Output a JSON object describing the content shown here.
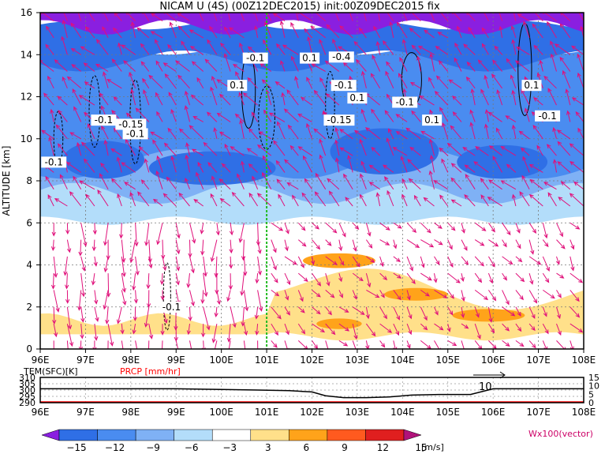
{
  "title": "NICAM U (4S) (00Z12DEC2015) init:00Z09DEC2015 fix",
  "colors": {
    "levels": [
      "#8a1fe0",
      "#2f6fe6",
      "#4a8cf0",
      "#7fb1f5",
      "#b3ddfa",
      "#ffffff",
      "#ffe08a",
      "#ffa31a",
      "#ff5a1f",
      "#e01f1f",
      "#b0127a"
    ],
    "vector": "#e0107a",
    "contour": "#000000",
    "marker_line": "#22bb22",
    "prcp_label": "#ff0000",
    "legend_label": "#cc0066"
  },
  "chart_data": [
    {
      "type": "heatmap",
      "title": "NICAM U (4S) (00Z12DEC2015) init:00Z09DEC2015 fix",
      "ylabel": "ALTITUDE [km]",
      "xlabel": "",
      "x_ticks": [
        "96E",
        "97E",
        "98E",
        "99E",
        "100E",
        "101E",
        "102E",
        "103E",
        "104E",
        "105E",
        "106E",
        "107E",
        "108E"
      ],
      "y_ticks": [
        "0",
        "2",
        "4",
        "6",
        "8",
        "10",
        "12",
        "14",
        "16"
      ],
      "xlim": [
        96,
        108
      ],
      "ylim": [
        0,
        16
      ],
      "grid": true,
      "marker_longitude": 101,
      "shading": "zonal wind U [m/s]",
      "levels": [
        -15,
        -12,
        -9,
        -6,
        -3,
        3,
        6,
        9,
        12,
        15
      ],
      "vectors": "zonal/vertical wind, Wx100",
      "contour_labels": [
        {
          "text": "-0.1",
          "x": 100.75,
          "y": 13.8
        },
        {
          "text": "0.1",
          "x": 101.95,
          "y": 13.8
        },
        {
          "text": "-0.4",
          "x": 102.65,
          "y": 13.85
        },
        {
          "text": "0.1",
          "x": 100.35,
          "y": 12.5
        },
        {
          "text": "-0.1",
          "x": 102.7,
          "y": 12.5
        },
        {
          "text": "0.1",
          "x": 103.0,
          "y": 11.9
        },
        {
          "text": "-0.1",
          "x": 104.05,
          "y": 11.7
        },
        {
          "text": "0.1",
          "x": 104.65,
          "y": 10.85
        },
        {
          "text": "0.1",
          "x": 106.85,
          "y": 12.5
        },
        {
          "text": "-0.1",
          "x": 107.2,
          "y": 11.05
        },
        {
          "text": "-0.1",
          "x": 97.4,
          "y": 10.85
        },
        {
          "text": "-0.15",
          "x": 98.0,
          "y": 10.65
        },
        {
          "text": "-0.1",
          "x": 98.1,
          "y": 10.2
        },
        {
          "text": "-0.15",
          "x": 102.6,
          "y": 10.85
        },
        {
          "text": "-0.1",
          "x": 96.3,
          "y": 8.85
        },
        {
          "text": "-0.1",
          "x": 98.9,
          "y": 1.95
        }
      ]
    },
    {
      "type": "line",
      "series": [
        {
          "name": "TEM(SFC)[K]",
          "x": [
            96,
            97,
            98,
            99,
            100,
            100.8,
            101.5,
            102,
            102.3,
            102.7,
            103.2,
            103.7,
            104.2,
            104.8,
            105.5,
            106,
            107,
            108
          ],
          "values": [
            301,
            301,
            301,
            301,
            300.5,
            300,
            299.5,
            298.5,
            295.5,
            294,
            294,
            294.5,
            296,
            296.5,
            296.5,
            301,
            301,
            301
          ]
        },
        {
          "name": "PRCP [mm/hr]",
          "x": [
            96,
            108
          ],
          "values": [
            0,
            0
          ]
        }
      ],
      "xlim": [
        96,
        108
      ],
      "ylim": [
        290,
        310
      ],
      "ylim_right": [
        0,
        15
      ],
      "x_ticks": [
        "96E",
        "97E",
        "98E",
        "99E",
        "100E",
        "101E",
        "102E",
        "103E",
        "104E",
        "105E",
        "106E",
        "107E",
        "108E"
      ],
      "y_ticks_left": [
        "310",
        "305",
        "300",
        "295",
        "290"
      ],
      "y_ticks_right": [
        "15",
        "10",
        "5",
        "0"
      ],
      "annotation": "10"
    }
  ],
  "legend": {
    "tick_labels": [
      "−15",
      "−12",
      "−9",
      "−6",
      "−3",
      "3",
      "6",
      "9",
      "12",
      "15"
    ],
    "unit": "[m/s]",
    "vector_note": "Wx100(vector)"
  }
}
